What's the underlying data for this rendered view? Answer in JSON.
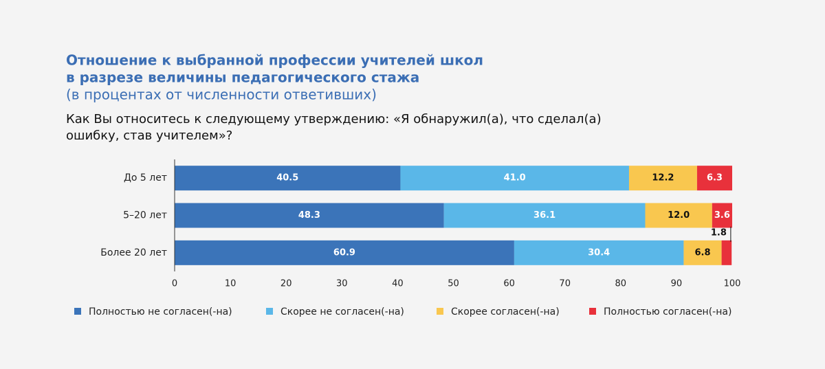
{
  "chart_data": {
    "type": "stacked-barh",
    "title": [
      "Отношение к выбранной профессии учителей школ",
      "в разрезе величины педагогического стажа"
    ],
    "subtitle": "(в процентах от численности ответивших)",
    "question": [
      "Как Вы относитесь к следующему утверждению: «Я обнаружил(а), что сделал(а)",
      "ошибку, став учителем»?"
    ],
    "categories": [
      "До 5 лет",
      "5–20 лет",
      "Более 20 лет"
    ],
    "series": [
      {
        "name": "Полностью не согласен(-на)",
        "color": "#3b74b9",
        "label_color": "#ffffff",
        "values": [
          40.5,
          48.3,
          60.9
        ],
        "value_labels": [
          "40.5",
          "48.3",
          "60.9"
        ]
      },
      {
        "name": "Скорее не согласен(-на)",
        "color": "#5ab7e8",
        "label_color": "#ffffff",
        "values": [
          41.0,
          36.1,
          30.4
        ],
        "value_labels": [
          "41.0",
          "36.1",
          "30.4"
        ]
      },
      {
        "name": "Скорее согласен(-на)",
        "color": "#f9c74f",
        "label_color": "#111111",
        "values": [
          12.2,
          12.0,
          6.8
        ],
        "value_labels": [
          "12.2",
          "12.0",
          "6.8"
        ]
      },
      {
        "name": "Полностью согласен(-на)",
        "color": "#e8313b",
        "label_color": "#ffffff",
        "values": [
          6.3,
          3.6,
          1.8
        ],
        "value_labels": [
          "6.3",
          "3.6",
          "1.8"
        ]
      }
    ],
    "xlim": [
      0,
      100
    ],
    "xticks": [
      0,
      10,
      20,
      30,
      40,
      50,
      60,
      70,
      80,
      90,
      100
    ]
  }
}
